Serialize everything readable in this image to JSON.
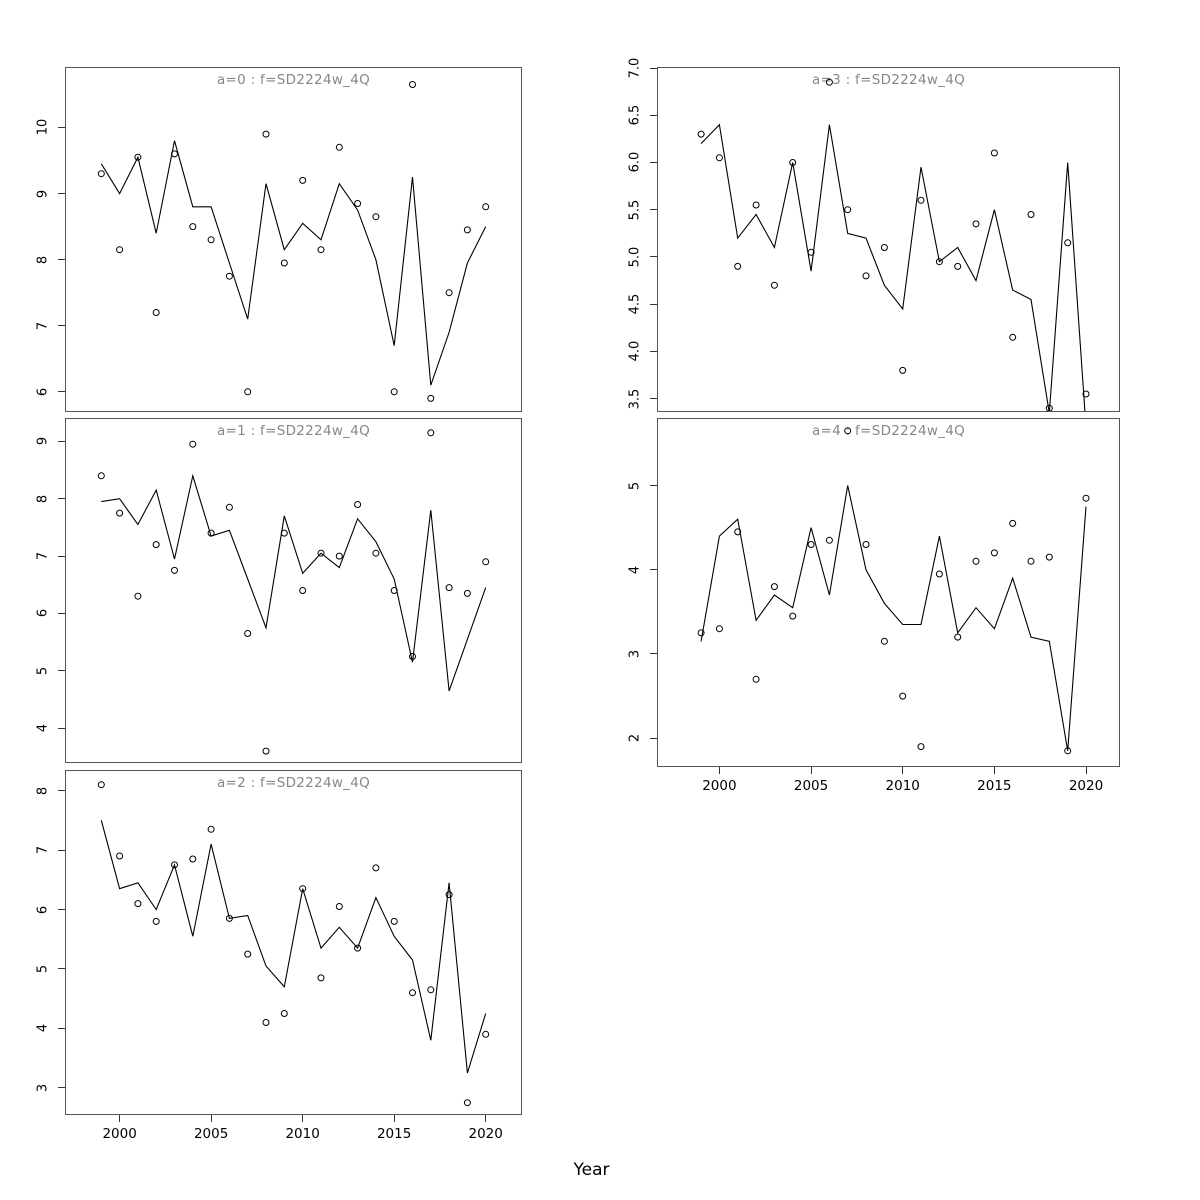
{
  "figure": {
    "xlabel": "Year",
    "background": "#ffffff",
    "title_color": "#878787",
    "axis_color": "#333333",
    "border_color": "#555555",
    "data_color": "#000000"
  },
  "years": [
    1999,
    2000,
    2001,
    2002,
    2003,
    2004,
    2005,
    2006,
    2007,
    2008,
    2009,
    2010,
    2011,
    2012,
    2013,
    2014,
    2015,
    2016,
    2017,
    2018,
    2019,
    2020
  ],
  "chart_data": [
    {
      "id": "a0",
      "type": "line",
      "title": "a=0 : f=SD2224w_4Q",
      "xlabel": "Year",
      "legend": "none",
      "grid": false,
      "series": [
        {
          "name": "observed",
          "style": "points",
          "values": [
            9.3,
            8.15,
            9.55,
            7.2,
            9.6,
            8.5,
            8.3,
            7.75,
            6.0,
            9.9,
            7.95,
            9.2,
            8.15,
            9.7,
            8.85,
            8.65,
            6.0,
            10.65,
            5.9,
            7.5,
            8.45,
            8.8
          ]
        },
        {
          "name": "fitted",
          "style": "line",
          "values": [
            9.45,
            9.0,
            9.55,
            8.4,
            9.8,
            8.8,
            8.8,
            7.95,
            7.1,
            9.15,
            8.15,
            8.55,
            8.3,
            9.15,
            8.75,
            8.0,
            6.7,
            9.25,
            6.1,
            6.9,
            7.95,
            8.5
          ]
        }
      ],
      "xlim": [
        1997.07,
        2021.93
      ],
      "ylim": [
        5.71,
        10.9
      ],
      "ytick_values": [
        6,
        7,
        8,
        9,
        10
      ],
      "ytick_labels": [
        "6",
        "7",
        "8",
        "9",
        "10"
      ],
      "xtick_values": [
        2000,
        2005,
        2010,
        2015,
        2020
      ],
      "xtick_labels": [
        "2000",
        "2005",
        "2010",
        "2015",
        "2020"
      ],
      "show_xtick_labels": false
    },
    {
      "id": "a1",
      "type": "line",
      "title": "a=1 : f=SD2224w_4Q",
      "xlabel": "Year",
      "legend": "none",
      "grid": false,
      "series": [
        {
          "name": "observed",
          "style": "points",
          "values": [
            8.4,
            7.75,
            6.3,
            7.2,
            6.75,
            8.95,
            7.4,
            7.85,
            5.65,
            3.6,
            7.4,
            6.4,
            7.05,
            7.0,
            7.9,
            7.05,
            6.4,
            5.25,
            9.15,
            6.45,
            6.35,
            6.9
          ]
        },
        {
          "name": "fitted",
          "style": "line",
          "values": [
            7.95,
            8.0,
            7.55,
            8.15,
            6.95,
            8.4,
            7.35,
            7.45,
            6.6,
            5.75,
            7.7,
            6.7,
            7.05,
            6.8,
            7.65,
            7.25,
            6.6,
            5.15,
            7.8,
            4.65,
            5.55,
            6.45
          ]
        }
      ],
      "xlim": [
        1997.07,
        2021.93
      ],
      "ylim": [
        3.41,
        9.39
      ],
      "ytick_values": [
        4,
        5,
        6,
        7,
        8,
        9
      ],
      "ytick_labels": [
        "4",
        "5",
        "6",
        "7",
        "8",
        "9"
      ],
      "xtick_values": [
        2000,
        2005,
        2010,
        2015,
        2020
      ],
      "xtick_labels": [
        "2000",
        "2005",
        "2010",
        "2015",
        "2020"
      ],
      "show_xtick_labels": false
    },
    {
      "id": "a2",
      "type": "line",
      "title": "a=2 : f=SD2224w_4Q",
      "xlabel": "Year",
      "legend": "none",
      "grid": false,
      "series": [
        {
          "name": "observed",
          "style": "points",
          "values": [
            8.1,
            6.9,
            6.1,
            5.8,
            6.75,
            6.85,
            7.35,
            5.85,
            5.25,
            4.1,
            4.25,
            6.35,
            4.85,
            6.05,
            5.35,
            6.7,
            5.8,
            4.6,
            4.65,
            6.25,
            2.75,
            3.9
          ]
        },
        {
          "name": "fitted",
          "style": "line",
          "values": [
            7.5,
            6.35,
            6.45,
            6.0,
            6.75,
            5.55,
            7.1,
            5.85,
            5.9,
            5.05,
            4.7,
            6.35,
            5.35,
            5.7,
            5.35,
            6.2,
            5.55,
            5.15,
            3.8,
            6.45,
            3.25,
            4.25
          ]
        }
      ],
      "xlim": [
        1997.07,
        2021.93
      ],
      "ylim": [
        2.56,
        8.33
      ],
      "ytick_values": [
        3,
        4,
        5,
        6,
        7,
        8
      ],
      "ytick_labels": [
        "3",
        "4",
        "5",
        "6",
        "7",
        "8"
      ],
      "xtick_values": [
        2000,
        2005,
        2010,
        2015,
        2020
      ],
      "xtick_labels": [
        "2000",
        "2005",
        "2010",
        "2015",
        "2020"
      ],
      "show_xtick_labels": true
    },
    {
      "id": "a3",
      "type": "line",
      "title": "a=3 : f=SD2224w_4Q",
      "xlabel": "Year",
      "legend": "none",
      "grid": false,
      "series": [
        {
          "name": "observed",
          "style": "points",
          "values": [
            6.3,
            6.05,
            4.9,
            5.55,
            4.7,
            6.0,
            5.05,
            6.85,
            5.5,
            4.8,
            5.1,
            3.8,
            5.6,
            4.95,
            4.9,
            5.35,
            6.1,
            4.15,
            5.45,
            3.4,
            5.15,
            3.55
          ]
        },
        {
          "name": "fitted",
          "style": "line",
          "values": [
            6.2,
            6.4,
            5.2,
            5.45,
            5.1,
            6.0,
            4.85,
            6.4,
            5.25,
            5.2,
            4.7,
            4.45,
            5.95,
            4.95,
            5.1,
            4.75,
            5.5,
            4.65,
            4.55,
            3.35,
            6.0,
            3.2
          ]
        }
      ],
      "xlim": [
        1996.65,
        2021.8
      ],
      "ylim": [
        3.37,
        7.0
      ],
      "ytick_values": [
        3.5,
        4.0,
        4.5,
        5.0,
        5.5,
        6.0,
        6.5,
        7.0
      ],
      "ytick_labels": [
        "3.5",
        "4.0",
        "4.5",
        "5.0",
        "5.5",
        "6.0",
        "6.5",
        "7.0"
      ],
      "xtick_values": [
        2000,
        2005,
        2010,
        2015,
        2020
      ],
      "xtick_labels": [
        "2000",
        "2005",
        "2010",
        "2015",
        "2020"
      ],
      "show_xtick_labels": false
    },
    {
      "id": "a4",
      "type": "line",
      "title": "a=4 : f=SD2224w_4Q",
      "xlabel": "Year",
      "legend": "none",
      "grid": false,
      "series": [
        {
          "name": "observed",
          "style": "points",
          "values": [
            3.25,
            3.3,
            4.45,
            2.7,
            3.8,
            3.45,
            4.3,
            4.35,
            5.65,
            4.3,
            3.15,
            2.5,
            1.9,
            3.95,
            3.2,
            4.1,
            4.2,
            4.55,
            4.1,
            4.15,
            1.85,
            4.85
          ]
        },
        {
          "name": "fitted",
          "style": "line",
          "values": [
            3.15,
            4.4,
            4.6,
            3.4,
            3.7,
            3.55,
            4.5,
            3.7,
            5.0,
            4.0,
            3.6,
            3.35,
            3.35,
            4.4,
            3.25,
            3.55,
            3.3,
            3.9,
            3.2,
            3.15,
            1.85,
            4.75
          ]
        }
      ],
      "xlim": [
        1996.65,
        2021.8
      ],
      "ylim": [
        1.67,
        5.79
      ],
      "ytick_values": [
        2,
        3,
        4,
        5
      ],
      "ytick_labels": [
        "2",
        "3",
        "4",
        "5"
      ],
      "xtick_values": [
        2000,
        2005,
        2010,
        2015,
        2020
      ],
      "xtick_labels": [
        "2000",
        "2005",
        "2010",
        "2015",
        "2020"
      ],
      "show_xtick_labels": true
    }
  ]
}
